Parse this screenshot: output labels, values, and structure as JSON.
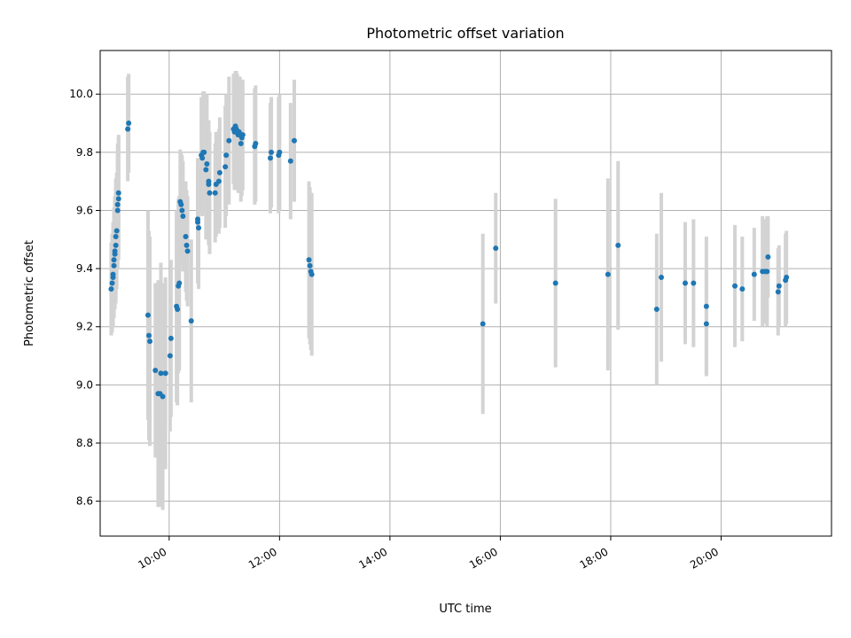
{
  "chart_data": {
    "type": "scatter",
    "title": "Photometric offset variation",
    "xlabel": "UTC time",
    "ylabel": "Photometric offset",
    "x_unit": "UTC time",
    "xlim": [
      "08:45",
      "22:00"
    ],
    "ylim": [
      8.48,
      10.15
    ],
    "x_ticks": [
      "10:00",
      "12:00",
      "14:00",
      "16:00",
      "18:00",
      "20:00"
    ],
    "y_ticks": [
      "8.6",
      "8.8",
      "9.0",
      "9.2",
      "9.4",
      "9.6",
      "9.8",
      "10.0"
    ],
    "grid": true,
    "legend": "none",
    "colors": {
      "point": "#1f77b4",
      "errorbar": "#d3d3d3"
    },
    "series": [
      {
        "points": [
          {
            "x": "08:57",
            "y": 9.33,
            "err": 0.16
          },
          {
            "x": "08:58",
            "y": 9.35,
            "err": 0.17
          },
          {
            "x": "08:59",
            "y": 9.37,
            "err": 0.17
          },
          {
            "x": "08:59",
            "y": 9.38,
            "err": 0.18
          },
          {
            "x": "09:00",
            "y": 9.41,
            "err": 0.18
          },
          {
            "x": "09:00",
            "y": 9.43,
            "err": 0.18
          },
          {
            "x": "09:01",
            "y": 9.45,
            "err": 0.19
          },
          {
            "x": "09:01",
            "y": 9.46,
            "err": 0.19
          },
          {
            "x": "09:02",
            "y": 9.48,
            "err": 0.2
          },
          {
            "x": "09:02",
            "y": 9.51,
            "err": 0.2
          },
          {
            "x": "09:03",
            "y": 9.53,
            "err": 0.2
          },
          {
            "x": "09:04",
            "y": 9.6,
            "err": 0.2
          },
          {
            "x": "09:04",
            "y": 9.62,
            "err": 0.21
          },
          {
            "x": "09:05",
            "y": 9.64,
            "err": 0.21
          },
          {
            "x": "09:05",
            "y": 9.66,
            "err": 0.2
          },
          {
            "x": "09:15",
            "y": 9.88,
            "err": 0.18
          },
          {
            "x": "09:16",
            "y": 9.9,
            "err": 0.17
          },
          {
            "x": "09:37",
            "y": 9.24,
            "err": 0.36
          },
          {
            "x": "09:38",
            "y": 9.17,
            "err": 0.36
          },
          {
            "x": "09:39",
            "y": 9.15,
            "err": 0.36
          },
          {
            "x": "09:45",
            "y": 9.05,
            "err": 0.3
          },
          {
            "x": "09:48",
            "y": 8.97,
            "err": 0.39
          },
          {
            "x": "09:50",
            "y": 8.97,
            "err": 0.39
          },
          {
            "x": "09:51",
            "y": 9.04,
            "err": 0.38
          },
          {
            "x": "09:53",
            "y": 8.96,
            "err": 0.39
          },
          {
            "x": "09:56",
            "y": 9.04,
            "err": 0.33
          },
          {
            "x": "10:01",
            "y": 9.1,
            "err": 0.26
          },
          {
            "x": "10:02",
            "y": 9.16,
            "err": 0.27
          },
          {
            "x": "10:08",
            "y": 9.27,
            "err": 0.33
          },
          {
            "x": "10:09",
            "y": 9.26,
            "err": 0.33
          },
          {
            "x": "10:10",
            "y": 9.34,
            "err": 0.3
          },
          {
            "x": "10:11",
            "y": 9.35,
            "err": 0.3
          },
          {
            "x": "10:12",
            "y": 9.63,
            "err": 0.18
          },
          {
            "x": "10:13",
            "y": 9.62,
            "err": 0.18
          },
          {
            "x": "10:14",
            "y": 9.6,
            "err": 0.19
          },
          {
            "x": "10:15",
            "y": 9.58,
            "err": 0.19
          },
          {
            "x": "10:18",
            "y": 9.51,
            "err": 0.19
          },
          {
            "x": "10:19",
            "y": 9.48,
            "err": 0.19
          },
          {
            "x": "10:20",
            "y": 9.46,
            "err": 0.19
          },
          {
            "x": "10:24",
            "y": 9.22,
            "err": 0.28
          },
          {
            "x": "10:31",
            "y": 9.57,
            "err": 0.21
          },
          {
            "x": "10:31",
            "y": 9.56,
            "err": 0.21
          },
          {
            "x": "10:32",
            "y": 9.54,
            "err": 0.21
          },
          {
            "x": "10:35",
            "y": 9.79,
            "err": 0.2
          },
          {
            "x": "10:36",
            "y": 9.78,
            "err": 0.2
          },
          {
            "x": "10:37",
            "y": 9.8,
            "err": 0.21
          },
          {
            "x": "10:38",
            "y": 9.8,
            "err": 0.21
          },
          {
            "x": "10:40",
            "y": 9.74,
            "err": 0.24
          },
          {
            "x": "10:41",
            "y": 9.76,
            "err": 0.24
          },
          {
            "x": "10:43",
            "y": 9.69,
            "err": 0.21
          },
          {
            "x": "10:43",
            "y": 9.7,
            "err": 0.21
          },
          {
            "x": "10:44",
            "y": 9.66,
            "err": 0.21
          },
          {
            "x": "10:50",
            "y": 9.66,
            "err": 0.17
          },
          {
            "x": "10:51",
            "y": 9.69,
            "err": 0.18
          },
          {
            "x": "10:54",
            "y": 9.7,
            "err": 0.18
          },
          {
            "x": "10:55",
            "y": 9.73,
            "err": 0.19
          },
          {
            "x": "11:01",
            "y": 9.75,
            "err": 0.21
          },
          {
            "x": "11:02",
            "y": 9.79,
            "err": 0.21
          },
          {
            "x": "11:05",
            "y": 9.84,
            "err": 0.22
          },
          {
            "x": "11:10",
            "y": 9.88,
            "err": 0.19
          },
          {
            "x": "11:11",
            "y": 9.87,
            "err": 0.2
          },
          {
            "x": "11:12",
            "y": 9.89,
            "err": 0.19
          },
          {
            "x": "11:13",
            "y": 9.88,
            "err": 0.2
          },
          {
            "x": "11:14",
            "y": 9.87,
            "err": 0.2
          },
          {
            "x": "11:15",
            "y": 9.86,
            "err": 0.2
          },
          {
            "x": "11:16",
            "y": 9.87,
            "err": 0.19
          },
          {
            "x": "11:17",
            "y": 9.86,
            "err": 0.2
          },
          {
            "x": "11:18",
            "y": 9.83,
            "err": 0.2
          },
          {
            "x": "11:19",
            "y": 9.85,
            "err": 0.2
          },
          {
            "x": "11:20",
            "y": 9.86,
            "err": 0.19
          },
          {
            "x": "11:33",
            "y": 9.82,
            "err": 0.2
          },
          {
            "x": "11:34",
            "y": 9.83,
            "err": 0.2
          },
          {
            "x": "11:50",
            "y": 9.78,
            "err": 0.19
          },
          {
            "x": "11:51",
            "y": 9.8,
            "err": 0.19
          },
          {
            "x": "11:59",
            "y": 9.79,
            "err": 0.2
          },
          {
            "x": "12:00",
            "y": 9.8,
            "err": 0.2
          },
          {
            "x": "12:12",
            "y": 9.77,
            "err": 0.2
          },
          {
            "x": "12:16",
            "y": 9.84,
            "err": 0.21
          },
          {
            "x": "12:32",
            "y": 9.43,
            "err": 0.27
          },
          {
            "x": "12:33",
            "y": 9.41,
            "err": 0.27
          },
          {
            "x": "12:34",
            "y": 9.39,
            "err": 0.27
          },
          {
            "x": "12:35",
            "y": 9.38,
            "err": 0.28
          },
          {
            "x": "15:41",
            "y": 9.21,
            "err": 0.31
          },
          {
            "x": "15:55",
            "y": 9.47,
            "err": 0.19
          },
          {
            "x": "17:00",
            "y": 9.35,
            "err": 0.29
          },
          {
            "x": "17:57",
            "y": 9.38,
            "err": 0.33
          },
          {
            "x": "18:08",
            "y": 9.48,
            "err": 0.29
          },
          {
            "x": "18:50",
            "y": 9.26,
            "err": 0.26
          },
          {
            "x": "18:55",
            "y": 9.37,
            "err": 0.29
          },
          {
            "x": "19:21",
            "y": 9.35,
            "err": 0.21
          },
          {
            "x": "19:30",
            "y": 9.35,
            "err": 0.22
          },
          {
            "x": "19:44",
            "y": 9.27,
            "err": 0.24
          },
          {
            "x": "19:44",
            "y": 9.21,
            "err": 0.18
          },
          {
            "x": "20:15",
            "y": 9.34,
            "err": 0.21
          },
          {
            "x": "20:23",
            "y": 9.33,
            "err": 0.18
          },
          {
            "x": "20:36",
            "y": 9.38,
            "err": 0.16
          },
          {
            "x": "20:45",
            "y": 9.39,
            "err": 0.19
          },
          {
            "x": "20:48",
            "y": 9.39,
            "err": 0.18
          },
          {
            "x": "20:50",
            "y": 9.39,
            "err": 0.19
          },
          {
            "x": "20:51",
            "y": 9.44,
            "err": 0.14
          },
          {
            "x": "21:02",
            "y": 9.32,
            "err": 0.15
          },
          {
            "x": "21:03",
            "y": 9.34,
            "err": 0.14
          },
          {
            "x": "21:10",
            "y": 9.36,
            "err": 0.16
          },
          {
            "x": "21:11",
            "y": 9.37,
            "err": 0.16
          }
        ]
      }
    ]
  }
}
